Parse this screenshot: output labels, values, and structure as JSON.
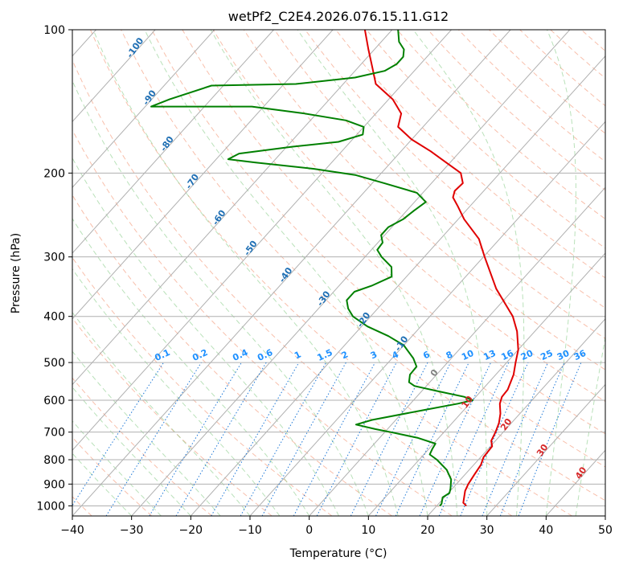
{
  "chart_data": {
    "type": "line",
    "title": "wetPf2_C2E4.2026.076.15.11.G12",
    "xlabel": "Temperature (°C)",
    "ylabel": "Pressure (hPa)",
    "xlim": [
      -40,
      50
    ],
    "ylim": [
      1050,
      100
    ],
    "y_scale": "log",
    "x_ticks": [
      -40,
      -30,
      -20,
      -10,
      0,
      10,
      20,
      30,
      40,
      50
    ],
    "x_tick_labels": [
      "−40",
      "−30",
      "−20",
      "−10",
      "0",
      "10",
      "20",
      "30",
      "40",
      "50"
    ],
    "y_ticks": [
      100,
      200,
      300,
      400,
      500,
      600,
      700,
      800,
      900,
      1000
    ],
    "y_tick_labels": [
      "100",
      "200",
      "300",
      "400",
      "500",
      "600",
      "700",
      "800",
      "900",
      "1000"
    ],
    "grid": true,
    "series": [
      {
        "color": "#e00000",
        "points": [
          [
            25.0,
            1000
          ],
          [
            24.0,
            985
          ],
          [
            22.5,
            930
          ],
          [
            22.0,
            900
          ],
          [
            21.6,
            860
          ],
          [
            21.2,
            820
          ],
          [
            20.5,
            790
          ],
          [
            20.3,
            750
          ],
          [
            19.3,
            730
          ],
          [
            18.7,
            700
          ],
          [
            17.9,
            670
          ],
          [
            16.7,
            640
          ],
          [
            15.1,
            610
          ],
          [
            14.4,
            590
          ],
          [
            14.3,
            570
          ],
          [
            13.0,
            530
          ],
          [
            11.5,
            500
          ],
          [
            10.0,
            470
          ],
          [
            7.0,
            430
          ],
          [
            4.0,
            400
          ],
          [
            -3.0,
            350
          ],
          [
            -9.8,
            300
          ],
          [
            -13.5,
            275
          ],
          [
            -19.0,
            250
          ],
          [
            -22.0,
            235
          ],
          [
            -24.2,
            225
          ],
          [
            -24.9,
            218
          ],
          [
            -24.7,
            210
          ],
          [
            -26.6,
            200
          ],
          [
            -30.7,
            190
          ],
          [
            -35.0,
            180
          ],
          [
            -40.0,
            170
          ],
          [
            -44.2,
            160
          ],
          [
            -45.7,
            150
          ],
          [
            -49.3,
            140
          ],
          [
            -54.5,
            130
          ],
          [
            -57.6,
            120
          ],
          [
            -61.0,
            110
          ],
          [
            -64.6,
            100
          ]
        ]
      },
      {
        "color": "#008000",
        "points": [
          [
            20.5,
            1000
          ],
          [
            20.5,
            990
          ],
          [
            19.7,
            960
          ],
          [
            20.2,
            940
          ],
          [
            19.7,
            920
          ],
          [
            18.4,
            880
          ],
          [
            16.2,
            840
          ],
          [
            13.0,
            800
          ],
          [
            11.0,
            780
          ],
          [
            10.6,
            760
          ],
          [
            10.3,
            740
          ],
          [
            6.5,
            720
          ],
          [
            1.0,
            700
          ],
          [
            -2.0,
            690
          ],
          [
            -6.0,
            675
          ],
          [
            -4.0,
            660
          ],
          [
            3.0,
            630
          ],
          [
            8.0,
            610
          ],
          [
            10.0,
            600
          ],
          [
            8.0,
            590
          ],
          [
            3.0,
            575
          ],
          [
            -2.0,
            560
          ],
          [
            -3.5,
            550
          ],
          [
            -4.5,
            530
          ],
          [
            -4.6,
            510
          ],
          [
            -6.4,
            490
          ],
          [
            -10.0,
            460
          ],
          [
            -14.0,
            440
          ],
          [
            -19.0,
            420
          ],
          [
            -23.0,
            400
          ],
          [
            -25.0,
            385
          ],
          [
            -26.5,
            370
          ],
          [
            -26.5,
            355
          ],
          [
            -24.5,
            345
          ],
          [
            -22.5,
            330
          ],
          [
            -24.0,
            315
          ],
          [
            -27.2,
            300
          ],
          [
            -29.0,
            290
          ],
          [
            -29.2,
            280
          ],
          [
            -30.6,
            270
          ],
          [
            -30.6,
            260
          ],
          [
            -29.3,
            250
          ],
          [
            -28.8,
            240
          ],
          [
            -28.1,
            230
          ],
          [
            -31.0,
            220
          ],
          [
            -38.0,
            210
          ],
          [
            -44.0,
            202
          ],
          [
            -52.0,
            196
          ],
          [
            -63.0,
            190
          ],
          [
            -68.0,
            187
          ],
          [
            -67.0,
            182
          ],
          [
            -59.0,
            176
          ],
          [
            -52.0,
            172
          ],
          [
            -49.0,
            166
          ],
          [
            -50.0,
            160
          ],
          [
            -54.0,
            155
          ],
          [
            -62.0,
            150
          ],
          [
            -72.0,
            145
          ],
          [
            -82.0,
            145
          ],
          [
            -89.0,
            145
          ],
          [
            -87.0,
            140
          ],
          [
            -82.0,
            131
          ],
          [
            -68.0,
            130
          ],
          [
            -59.0,
            126
          ],
          [
            -55.0,
            122
          ],
          [
            -54.0,
            118
          ],
          [
            -54.0,
            114
          ],
          [
            -55.0,
            110
          ],
          [
            -57.0,
            106
          ],
          [
            -59.0,
            100
          ]
        ]
      }
    ],
    "isotherm_labels": [
      "-100",
      "-90",
      "-80",
      "-70",
      "-60",
      "-50",
      "-40",
      "-30",
      "-20",
      "-10",
      "0",
      "10",
      "20",
      "30",
      "40"
    ],
    "mixing_ratio_labels": [
      "0.1",
      "0.2",
      "0.4",
      "0.6",
      "1",
      "1.5",
      "2",
      "3",
      "4",
      "6",
      "8",
      "10",
      "13",
      "16",
      "20",
      "25",
      "30",
      "36"
    ]
  }
}
